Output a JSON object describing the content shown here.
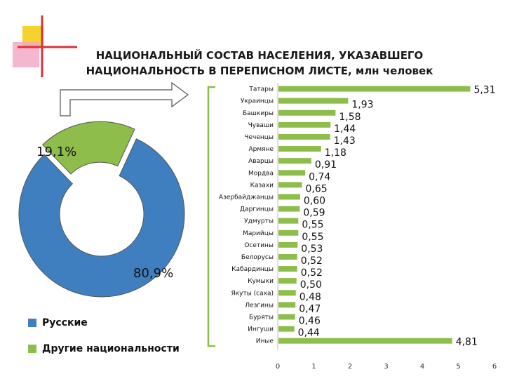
{
  "title_line1": "НАЦИОНАЛЬНЫЙ СОСТАВ НАСЕЛЕНИЯ, УКАЗАВШЕГО",
  "title_line2": "НАЦИОНАЛЬНОСТЬ В ПЕРЕПИСНОМ ЛИСТЕ,",
  "title_unit": "млн человек",
  "colors": {
    "blue": "#3f7fbf",
    "green": "#8ebd4b",
    "axis": "#bfbfbf",
    "decor_yellow": "#f5d22e",
    "decor_red": "#d9323a",
    "decor_pink": "#f2a5c3"
  },
  "chart_data": [
    {
      "type": "pie",
      "variant": "donut",
      "slices": [
        {
          "name": "Русские",
          "value": 80.9,
          "label": "80,9%",
          "color": "#3f7fbf"
        },
        {
          "name": "Другие национальности",
          "value": 19.1,
          "label": "19,1%",
          "color": "#8ebd4b",
          "exploded": true
        }
      ],
      "legend_position": "bottom-left"
    },
    {
      "type": "bar",
      "orientation": "horizontal",
      "categories": [
        "Татары",
        "Украинцы",
        "Башкиры",
        "Чуваши",
        "Чеченцы",
        "Армяне",
        "Аварцы",
        "Мордва",
        "Казахи",
        "Азербайджанцы",
        "Даргинцы",
        "Удмурты",
        "Марийцы",
        "Осетины",
        "Белорусы",
        "Кабардинцы",
        "Кумыки",
        "Якуты (саха)",
        "Лезгины",
        "Буряты",
        "Ингуши",
        "Иные"
      ],
      "values": [
        5.31,
        1.93,
        1.58,
        1.44,
        1.43,
        1.18,
        0.91,
        0.74,
        0.65,
        0.6,
        0.59,
        0.55,
        0.55,
        0.53,
        0.52,
        0.52,
        0.5,
        0.48,
        0.47,
        0.46,
        0.44,
        4.81
      ],
      "labels": [
        "5,31",
        "1,93",
        "1,58",
        "1,44",
        "1,43",
        "1,18",
        "0,91",
        "0,74",
        "0,65",
        "0,60",
        "0,59",
        "0,55",
        "0,55",
        "0,53",
        "0,52",
        "0,52",
        "0,50",
        "0,48",
        "0,47",
        "0,46",
        "0,44",
        "4,81"
      ],
      "xlim": [
        0,
        6
      ],
      "xticks": [
        "0",
        "1",
        "2",
        "3",
        "4",
        "5",
        "6"
      ],
      "grid": false,
      "color": "#8ebd4b"
    }
  ]
}
